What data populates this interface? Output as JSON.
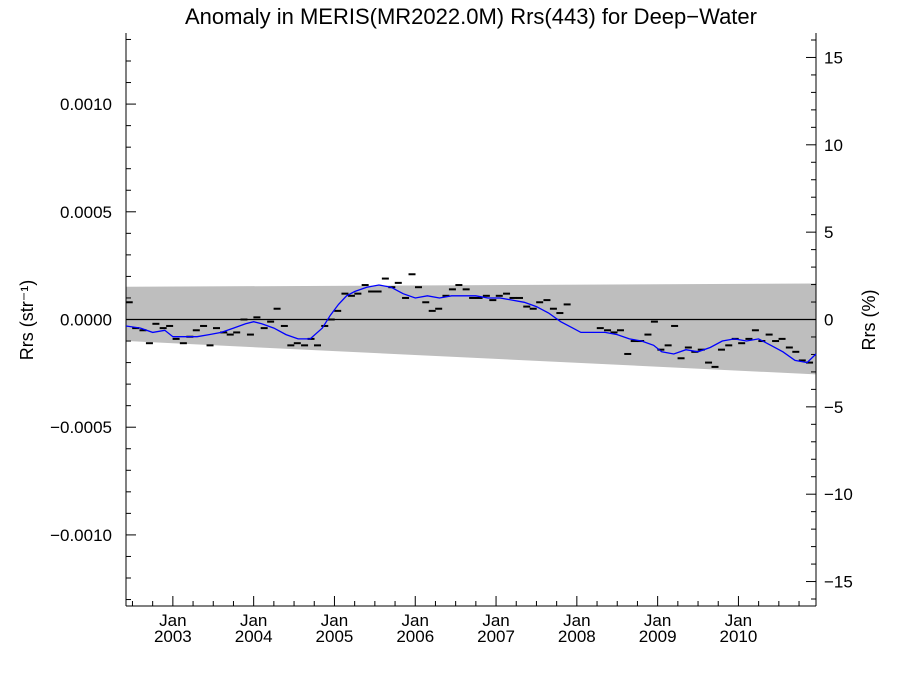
{
  "chart_data": {
    "type": "line",
    "title": "Anomaly in MERIS(MR2022.0M) Rrs(443) for Deep−Water",
    "ylabel_left": "Rrs (str⁻¹)",
    "ylabel_right": "Rrs (%)",
    "xlim": [
      2002.42,
      2010.96
    ],
    "ylim": [
      -0.00133,
      0.00133
    ],
    "y2lim": [
      -16.4,
      16.4
    ],
    "x_ticks": [
      {
        "x": 2003.0,
        "month": "Jan",
        "year": "2003"
      },
      {
        "x": 2004.0,
        "month": "Jan",
        "year": "2004"
      },
      {
        "x": 2005.0,
        "month": "Jan",
        "year": "2005"
      },
      {
        "x": 2006.0,
        "month": "Jan",
        "year": "2006"
      },
      {
        "x": 2007.0,
        "month": "Jan",
        "year": "2007"
      },
      {
        "x": 2008.0,
        "month": "Jan",
        "year": "2008"
      },
      {
        "x": 2009.0,
        "month": "Jan",
        "year": "2009"
      },
      {
        "x": 2010.0,
        "month": "Jan",
        "year": "2010"
      }
    ],
    "y_ticks": [
      {
        "v": 0.001,
        "label": "0.0010"
      },
      {
        "v": 0.0005,
        "label": "0.0005"
      },
      {
        "v": 0.0,
        "label": "0.0000"
      },
      {
        "v": -0.0005,
        "label": "−0.0005"
      },
      {
        "v": -0.001,
        "label": "−0.0010"
      }
    ],
    "y2_ticks": [
      {
        "v": 15,
        "label": "15"
      },
      {
        "v": 10,
        "label": "10"
      },
      {
        "v": 5,
        "label": "5"
      },
      {
        "v": 0,
        "label": "0"
      },
      {
        "v": -5,
        "label": "−5"
      },
      {
        "v": -10,
        "label": "−10"
      },
      {
        "v": -15,
        "label": "−15"
      }
    ],
    "reference_line": 0.0,
    "band": {
      "x": [
        2002.42,
        2010.96
      ],
      "upper": [
        0.000152,
        0.000167
      ],
      "lower": [
        -0.0001,
        -0.000255
      ]
    },
    "series": [
      {
        "style": "monthly points",
        "x": [
          2002.46,
          2002.54,
          2002.63,
          2002.71,
          2002.79,
          2002.88,
          2002.96,
          2003.04,
          2003.13,
          2003.21,
          2003.29,
          2003.38,
          2003.46,
          2003.54,
          2003.63,
          2003.71,
          2003.79,
          2003.88,
          2003.96,
          2004.04,
          2004.13,
          2004.21,
          2004.29,
          2004.38,
          2004.46,
          2004.54,
          2004.63,
          2004.71,
          2004.79,
          2004.88,
          2004.96,
          2005.04,
          2005.13,
          2005.21,
          2005.29,
          2005.38,
          2005.46,
          2005.54,
          2005.63,
          2005.71,
          2005.79,
          2005.88,
          2005.96,
          2006.04,
          2006.13,
          2006.21,
          2006.29,
          2006.38,
          2006.46,
          2006.54,
          2006.63,
          2006.71,
          2006.79,
          2006.88,
          2006.96,
          2007.04,
          2007.13,
          2007.21,
          2007.29,
          2007.38,
          2007.46,
          2007.54,
          2007.63,
          2007.71,
          2007.79,
          2007.88,
          2008.29,
          2008.38,
          2008.46,
          2008.54,
          2008.63,
          2008.71,
          2008.79,
          2008.88,
          2008.96,
          2009.04,
          2009.13,
          2009.21,
          2009.29,
          2009.38,
          2009.46,
          2009.54,
          2009.63,
          2009.71,
          2009.79,
          2009.88,
          2009.96,
          2010.04,
          2010.13,
          2010.21,
          2010.29,
          2010.38,
          2010.46,
          2010.54,
          2010.63,
          2010.71,
          2010.79,
          2010.88
        ],
        "y": [
          8e-05,
          -4e-05,
          -5e-05,
          -0.00011,
          -2e-05,
          -4e-05,
          -3e-05,
          -9e-05,
          -0.00011,
          -8e-05,
          -5e-05,
          -3e-05,
          -0.00012,
          -4e-05,
          -6e-05,
          -7e-05,
          -6e-05,
          0.0,
          -7e-05,
          1e-05,
          -4e-05,
          -1e-05,
          5e-05,
          -3e-05,
          -0.00012,
          -0.00011,
          -0.00012,
          -9e-05,
          -0.00012,
          -3e-05,
          0.0,
          4e-05,
          0.00012,
          0.00011,
          0.00012,
          0.00016,
          0.00013,
          0.00013,
          0.00019,
          0.00015,
          0.00017,
          0.0001,
          0.00021,
          0.00015,
          8e-05,
          4e-05,
          5e-05,
          0.00011,
          0.00014,
          0.00016,
          0.00014,
          0.0001,
          0.0001,
          0.00011,
          9e-05,
          0.00011,
          0.00012,
          0.0001,
          0.0001,
          6e-05,
          5e-05,
          8e-05,
          9e-05,
          5e-05,
          3e-05,
          7e-05,
          -4e-05,
          -5e-05,
          -6e-05,
          -5e-05,
          -0.00016,
          -0.0001,
          -0.0001,
          -7e-05,
          -1e-05,
          -0.00014,
          -0.00012,
          -3e-05,
          -0.00018,
          -0.00013,
          -0.00015,
          -0.00014,
          -0.0002,
          -0.00022,
          -0.00014,
          -0.00012,
          -9e-05,
          -0.00011,
          -9e-05,
          -5e-05,
          -0.0001,
          -7e-05,
          -0.0001,
          -9e-05,
          -0.00013,
          -0.00015,
          -0.00019,
          -0.0002
        ]
      },
      {
        "style": "running mean",
        "color": "#0000ff",
        "x": [
          2002.42,
          2002.6,
          2002.75,
          2002.9,
          2003.0,
          2003.15,
          2003.3,
          2003.45,
          2003.6,
          2003.75,
          2003.9,
          2004.0,
          2004.1,
          2004.25,
          2004.4,
          2004.55,
          2004.7,
          2004.85,
          2004.95,
          2005.05,
          2005.15,
          2005.25,
          2005.4,
          2005.55,
          2005.7,
          2005.85,
          2006.0,
          2006.15,
          2006.3,
          2006.45,
          2006.6,
          2006.75,
          2006.9,
          2007.05,
          2007.2,
          2007.35,
          2007.5,
          2007.65,
          2007.8,
          2007.95,
          2008.05,
          2008.2,
          2008.35,
          2008.5,
          2008.65,
          2008.8,
          2008.95,
          2009.05,
          2009.2,
          2009.35,
          2009.5,
          2009.65,
          2009.8,
          2009.95,
          2010.1,
          2010.25,
          2010.4,
          2010.55,
          2010.7,
          2010.85,
          2010.96
        ],
        "y": [
          -3e-05,
          -4e-05,
          -6e-05,
          -5e-05,
          -8e-05,
          -8e-05,
          -8e-05,
          -7e-05,
          -6e-05,
          -4e-05,
          -2e-05,
          -1e-05,
          -2e-05,
          -4e-05,
          -7e-05,
          -9e-05,
          -9e-05,
          -4e-05,
          2e-05,
          7e-05,
          0.00011,
          0.00013,
          0.00015,
          0.00016,
          0.00015,
          0.00012,
          0.0001,
          0.00011,
          0.0001,
          0.00011,
          0.00011,
          0.00011,
          0.0001,
          0.0001,
          9e-05,
          8e-05,
          6e-05,
          3e-05,
          -1e-05,
          -4e-05,
          -6e-05,
          -6e-05,
          -6e-05,
          -7e-05,
          -9e-05,
          -0.0001,
          -0.00012,
          -0.00015,
          -0.00016,
          -0.00014,
          -0.00015,
          -0.00013,
          -0.0001,
          -9e-05,
          -0.0001,
          -9e-05,
          -0.00012,
          -0.00015,
          -0.00019,
          -0.0002,
          -0.00016
        ]
      }
    ],
    "grid": false,
    "legend": "none"
  }
}
